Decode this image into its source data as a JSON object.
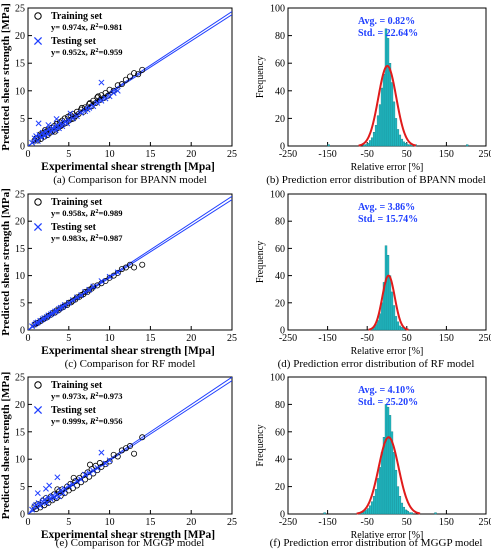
{
  "chart_data": [
    {
      "type": "scatter",
      "caption": "(a) Comparison for BPANN model",
      "xlabel": "Experimental shear strength [Mpa]",
      "ylabel": "Predicted shear strength [MPa]",
      "xlim": [
        0,
        25
      ],
      "ylim": [
        0,
        25
      ],
      "xticks": [
        "0",
        "5",
        "10",
        "15",
        "20",
        "25"
      ],
      "yticks": [
        "0",
        "5",
        "10",
        "15",
        "20",
        "25"
      ],
      "grid": false,
      "legend": {
        "position": "top-left",
        "entries": [
          {
            "marker": "circle",
            "label": "Training set",
            "eq_prefix": "y= 0.974x, ",
            "r2_sym": "R",
            "r2_sup": "2",
            "r2_val": "=0.981"
          },
          {
            "marker": "cross",
            "label": "Testing set",
            "eq_prefix": "y= 0.952x, ",
            "r2_sym": "R",
            "r2_sup": "2",
            "r2_val": "=0.959"
          }
        ]
      },
      "fit_slopes": [
        0.974,
        0.952
      ],
      "series": [
        {
          "marker": "circle",
          "color": "#000000",
          "x": [
            0.8,
            1.0,
            1.2,
            1.4,
            1.6,
            1.8,
            2.0,
            2.2,
            2.4,
            2.5,
            2.7,
            2.9,
            3.0,
            3.2,
            3.4,
            3.5,
            3.7,
            3.9,
            4.0,
            4.2,
            4.4,
            4.5,
            4.7,
            4.9,
            5.0,
            5.2,
            5.4,
            5.5,
            5.8,
            6.0,
            6.2,
            6.5,
            6.8,
            7.0,
            7.2,
            7.5,
            7.8,
            8.0,
            8.3,
            8.5,
            8.8,
            9.0,
            9.3,
            9.5,
            9.8,
            10.0,
            10.5,
            11.0,
            11.5,
            12.0,
            12.5,
            13.0,
            13.5,
            14.0,
            1.5,
            2.1,
            3.3,
            4.1,
            5.6,
            6.6,
            7.6,
            8.6
          ],
          "y": [
            1.0,
            1.4,
            1.0,
            1.8,
            1.3,
            2.3,
            1.7,
            2.6,
            2.0,
            3.0,
            2.4,
            3.3,
            2.7,
            3.6,
            3.0,
            4.0,
            3.3,
            4.3,
            3.6,
            4.6,
            4.0,
            5.0,
            4.2,
            5.3,
            4.6,
            5.6,
            4.9,
            5.8,
            5.4,
            6.2,
            5.8,
            6.6,
            6.2,
            7.0,
            6.8,
            7.6,
            7.2,
            8.2,
            7.8,
            8.8,
            8.3,
            9.2,
            8.7,
            9.6,
            9.1,
            10.2,
            10.0,
            11.0,
            11.2,
            12.0,
            12.6,
            13.2,
            13.0,
            13.8,
            2.1,
            2.9,
            2.6,
            3.8,
            5.0,
            6.9,
            7.8,
            9.0
          ]
        },
        {
          "marker": "cross",
          "color": "#1f3fff",
          "x": [
            0.5,
            0.8,
            1.0,
            1.2,
            1.4,
            1.6,
            1.8,
            2.0,
            2.2,
            2.4,
            2.6,
            2.8,
            3.0,
            3.2,
            3.4,
            3.6,
            3.8,
            4.0,
            4.2,
            4.5,
            4.8,
            5.0,
            5.5,
            6.0,
            6.5,
            7.0,
            7.5,
            8.0,
            8.5,
            9.0,
            9.5,
            10.0,
            10.5,
            11.0,
            1.3,
            2.5,
            3.5,
            5.2,
            7.3,
            9.0
          ],
          "y": [
            0.6,
            1.4,
            1.8,
            0.9,
            2.0,
            1.5,
            2.4,
            1.8,
            2.7,
            2.1,
            3.1,
            2.5,
            3.0,
            3.5,
            2.9,
            3.8,
            3.2,
            4.2,
            3.6,
            4.4,
            4.1,
            4.7,
            5.0,
            5.4,
            6.0,
            6.3,
            6.9,
            7.2,
            7.8,
            8.2,
            8.6,
            9.0,
            9.6,
            10.0,
            4.1,
            3.8,
            4.9,
            5.9,
            6.6,
            11.5
          ]
        }
      ]
    },
    {
      "type": "bar",
      "caption": "(b) Prediction error distribution of BPANN model",
      "xlabel": "Relative error [%]",
      "ylabel": "Frequency",
      "xlim": [
        -250,
        250
      ],
      "ylim": [
        0,
        100
      ],
      "xticks": [
        "-250",
        "-150",
        "-50",
        "50",
        "150",
        "250"
      ],
      "yticks": [
        "0",
        "20",
        "40",
        "60",
        "80",
        "100"
      ],
      "annotation": [
        "Avg. = 0.82%",
        "Std. = 22.64%"
      ],
      "normal_fit": {
        "mean": 0.82,
        "std": 22.64,
        "peak": 58
      },
      "bin_width": 5,
      "bins": {
        "left": [
          -60,
          -55,
          -50,
          -45,
          -40,
          -35,
          -30,
          -25,
          -20,
          -15,
          -10,
          -5,
          0,
          5,
          10,
          15,
          20,
          25,
          30,
          35,
          40,
          45,
          50,
          55,
          60
        ],
        "freq": [
          1,
          1,
          2,
          4,
          6,
          10,
          15,
          22,
          30,
          42,
          52,
          85,
          78,
          60,
          46,
          32,
          20,
          12,
          8,
          5,
          3,
          2,
          1,
          1,
          1
        ]
      },
      "outliers": [
        {
          "left": -150,
          "freq": 1
        },
        {
          "left": 70,
          "freq": 1
        },
        {
          "left": 200,
          "freq": 1
        }
      ]
    },
    {
      "type": "scatter",
      "caption": "(c) Comparison for RF model",
      "xlabel": "Experimental shear strength [Mpa]",
      "ylabel": "Predicted shear strength [MPa]",
      "xlim": [
        0,
        25
      ],
      "ylim": [
        0,
        25
      ],
      "xticks": [
        "0",
        "5",
        "10",
        "15",
        "20",
        "25"
      ],
      "yticks": [
        "0",
        "5",
        "10",
        "15",
        "20",
        "25"
      ],
      "grid": false,
      "legend": {
        "position": "top-left",
        "entries": [
          {
            "marker": "circle",
            "label": "Training set",
            "eq_prefix": "y= 0.958x, ",
            "r2_sym": "R",
            "r2_sup": "2",
            "r2_val": "=0.989"
          },
          {
            "marker": "cross",
            "label": "Testing set",
            "eq_prefix": "y= 0.983x, ",
            "r2_sym": "R",
            "r2_sup": "2",
            "r2_val": "=0.987"
          }
        ]
      },
      "fit_slopes": [
        0.958,
        0.983
      ],
      "series": [
        {
          "marker": "circle",
          "color": "#000000",
          "x": [
            0.8,
            1.0,
            1.2,
            1.5,
            1.8,
            2.0,
            2.3,
            2.5,
            2.8,
            3.0,
            3.3,
            3.5,
            3.8,
            4.0,
            4.3,
            4.5,
            4.8,
            5.0,
            5.3,
            5.5,
            5.8,
            6.0,
            6.3,
            6.5,
            6.8,
            7.0,
            7.3,
            7.5,
            7.8,
            8.0,
            8.5,
            9.0,
            9.5,
            10.0,
            10.5,
            11.0,
            11.5,
            12.0,
            12.5,
            13.0,
            14.0
          ],
          "y": [
            1.0,
            1.2,
            1.3,
            1.6,
            1.9,
            2.1,
            2.3,
            2.6,
            2.8,
            3.1,
            3.2,
            3.6,
            3.7,
            4.0,
            4.2,
            4.5,
            4.6,
            5.0,
            5.1,
            5.4,
            5.6,
            6.0,
            6.1,
            6.4,
            6.6,
            7.0,
            7.0,
            7.4,
            7.6,
            8.0,
            8.2,
            8.6,
            9.0,
            9.6,
            10.0,
            10.5,
            11.2,
            11.5,
            12.0,
            11.5,
            12.0
          ]
        },
        {
          "marker": "cross",
          "color": "#1f3fff",
          "x": [
            0.5,
            0.8,
            1.0,
            1.2,
            1.5,
            1.8,
            2.0,
            2.3,
            2.5,
            2.8,
            3.0,
            3.3,
            3.5,
            3.8,
            4.0,
            4.3,
            4.5,
            5.0,
            5.5,
            6.0,
            6.5,
            7.0,
            7.5,
            8.0,
            9.0,
            10.0,
            11.0
          ],
          "y": [
            0.7,
            1.0,
            1.3,
            1.4,
            1.7,
            2.0,
            2.2,
            2.4,
            2.7,
            2.9,
            3.1,
            3.4,
            3.5,
            3.9,
            4.1,
            4.3,
            4.6,
            5.0,
            5.5,
            6.0,
            6.4,
            7.0,
            7.4,
            8.0,
            9.0,
            9.8,
            10.6
          ]
        }
      ]
    },
    {
      "type": "bar",
      "caption": "(d) Prediction error distribution of RF model",
      "xlabel": "Relative error [%]",
      "ylabel": "Frequency",
      "xlim": [
        -250,
        250
      ],
      "ylim": [
        0,
        100
      ],
      "xticks": [
        "-250",
        "-150",
        "-50",
        "50",
        "150",
        "250"
      ],
      "yticks": [
        "0",
        "20",
        "40",
        "60",
        "80",
        "100"
      ],
      "annotation": [
        "Avg. = 3.86%",
        "Std. = 15.74%"
      ],
      "normal_fit": {
        "mean": 3.86,
        "std": 15.74,
        "peak": 40
      },
      "bin_width": 5,
      "bins": {
        "left": [
          -40,
          -35,
          -30,
          -25,
          -20,
          -15,
          -10,
          -5,
          0,
          5,
          10,
          15,
          20,
          25,
          30,
          35,
          40
        ],
        "freq": [
          1,
          2,
          4,
          7,
          12,
          20,
          35,
          62,
          55,
          40,
          28,
          18,
          10,
          6,
          3,
          2,
          1
        ]
      },
      "outliers": []
    },
    {
      "type": "scatter",
      "caption": "(e) Comparison for MGGP model",
      "xlabel": "Experimental shear strength [MPa]",
      "ylabel": "Predicted shear strength [MPa]",
      "xlim": [
        0,
        25
      ],
      "ylim": [
        0,
        25
      ],
      "xticks": [
        "0",
        "5",
        "10",
        "15",
        "20",
        "25"
      ],
      "yticks": [
        "0",
        "5",
        "10",
        "15",
        "20",
        "25"
      ],
      "grid": false,
      "legend": {
        "position": "top-left",
        "entries": [
          {
            "marker": "circle",
            "label": "Training set",
            "eq_prefix": "y= 0.973x, ",
            "r2_sym": "R",
            "r2_sup": "2",
            "r2_val": "=0.973"
          },
          {
            "marker": "cross",
            "label": "Testing set",
            "eq_prefix": "y= 0.999x, ",
            "r2_sym": "R",
            "r2_sup": "2",
            "r2_val": "=0.956"
          }
        ]
      },
      "fit_slopes": [
        0.973,
        0.999
      ],
      "series": [
        {
          "marker": "circle",
          "color": "#000000",
          "x": [
            0.8,
            1.0,
            1.2,
            1.5,
            1.8,
            2.0,
            2.2,
            2.5,
            2.8,
            3.0,
            3.2,
            3.5,
            3.8,
            4.0,
            4.2,
            4.5,
            4.8,
            5.0,
            5.2,
            5.5,
            5.8,
            6.0,
            6.3,
            6.5,
            6.8,
            7.0,
            7.3,
            7.5,
            7.8,
            8.0,
            8.3,
            8.5,
            8.8,
            9.0,
            9.5,
            10.0,
            10.5,
            11.0,
            11.5,
            12.0,
            12.5,
            13.0,
            14.0,
            2.4,
            3.6,
            5.6,
            7.6
          ],
          "y": [
            1.4,
            0.9,
            1.8,
            1.2,
            2.4,
            1.6,
            2.9,
            2.0,
            3.2,
            2.5,
            3.6,
            2.9,
            4.1,
            3.3,
            4.5,
            3.8,
            5.0,
            4.3,
            5.5,
            4.7,
            6.0,
            5.2,
            6.6,
            5.8,
            7.1,
            6.3,
            7.6,
            6.8,
            8.2,
            7.4,
            8.8,
            8.0,
            9.3,
            8.6,
            9.1,
            9.6,
            10.8,
            10.5,
            11.6,
            12.0,
            12.4,
            11.0,
            14.0,
            2.5,
            4.5,
            6.6,
            9.0
          ]
        },
        {
          "marker": "cross",
          "color": "#1f3fff",
          "x": [
            0.5,
            0.8,
            1.0,
            1.3,
            1.5,
            1.8,
            2.0,
            2.3,
            2.5,
            2.8,
            3.0,
            3.3,
            3.5,
            3.8,
            4.0,
            4.3,
            4.5,
            5.0,
            5.5,
            6.0,
            6.5,
            7.0,
            7.5,
            8.0,
            8.5,
            9.0,
            9.5,
            10.0,
            1.2,
            2.2,
            2.6,
            3.6
          ],
          "y": [
            0.8,
            1.4,
            1.7,
            2.0,
            1.5,
            2.3,
            2.6,
            2.0,
            3.0,
            2.7,
            3.3,
            3.0,
            3.6,
            3.2,
            4.3,
            3.8,
            4.6,
            5.1,
            5.4,
            6.0,
            6.3,
            7.2,
            7.5,
            7.9,
            8.4,
            11.2,
            9.2,
            9.8,
            3.8,
            4.6,
            5.2,
            6.7
          ]
        }
      ]
    },
    {
      "type": "bar",
      "caption": "(f) Prediction error distribution of MGGP model",
      "xlabel": "Relative error [%]",
      "ylabel": "Frequency",
      "xlim": [
        -250,
        250
      ],
      "ylim": [
        0,
        100
      ],
      "xticks": [
        "-250",
        "-150",
        "-50",
        "50",
        "150",
        "250"
      ],
      "yticks": [
        "0",
        "20",
        "40",
        "60",
        "80",
        "100"
      ],
      "annotation": [
        "Avg. = 4.10%",
        "Std. = 25.20%"
      ],
      "normal_fit": {
        "mean": 4.1,
        "std": 25.2,
        "peak": 56
      },
      "bin_width": 5,
      "bins": {
        "left": [
          -70,
          -65,
          -60,
          -55,
          -50,
          -45,
          -40,
          -35,
          -30,
          -25,
          -20,
          -15,
          -10,
          -5,
          0,
          5,
          10,
          15,
          20,
          25,
          30,
          35,
          40,
          45,
          50,
          55,
          60
        ],
        "freq": [
          1,
          1,
          2,
          3,
          4,
          6,
          9,
          13,
          18,
          26,
          34,
          45,
          56,
          80,
          78,
          72,
          60,
          45,
          32,
          20,
          13,
          8,
          5,
          3,
          2,
          1,
          1
        ]
      },
      "outliers": [
        {
          "left": -160,
          "freq": 1
        },
        {
          "left": 120,
          "freq": 1
        }
      ]
    }
  ],
  "colors": {
    "axis": "#000000",
    "training_marker": "#000000",
    "testing_marker": "#1f3fff",
    "fit_line": "#1f3fff",
    "bar_fill": "#22bdc6",
    "bar_stroke": "#127880",
    "normal_curve": "#e01b1b",
    "annotation_text": "#1f3fff"
  }
}
